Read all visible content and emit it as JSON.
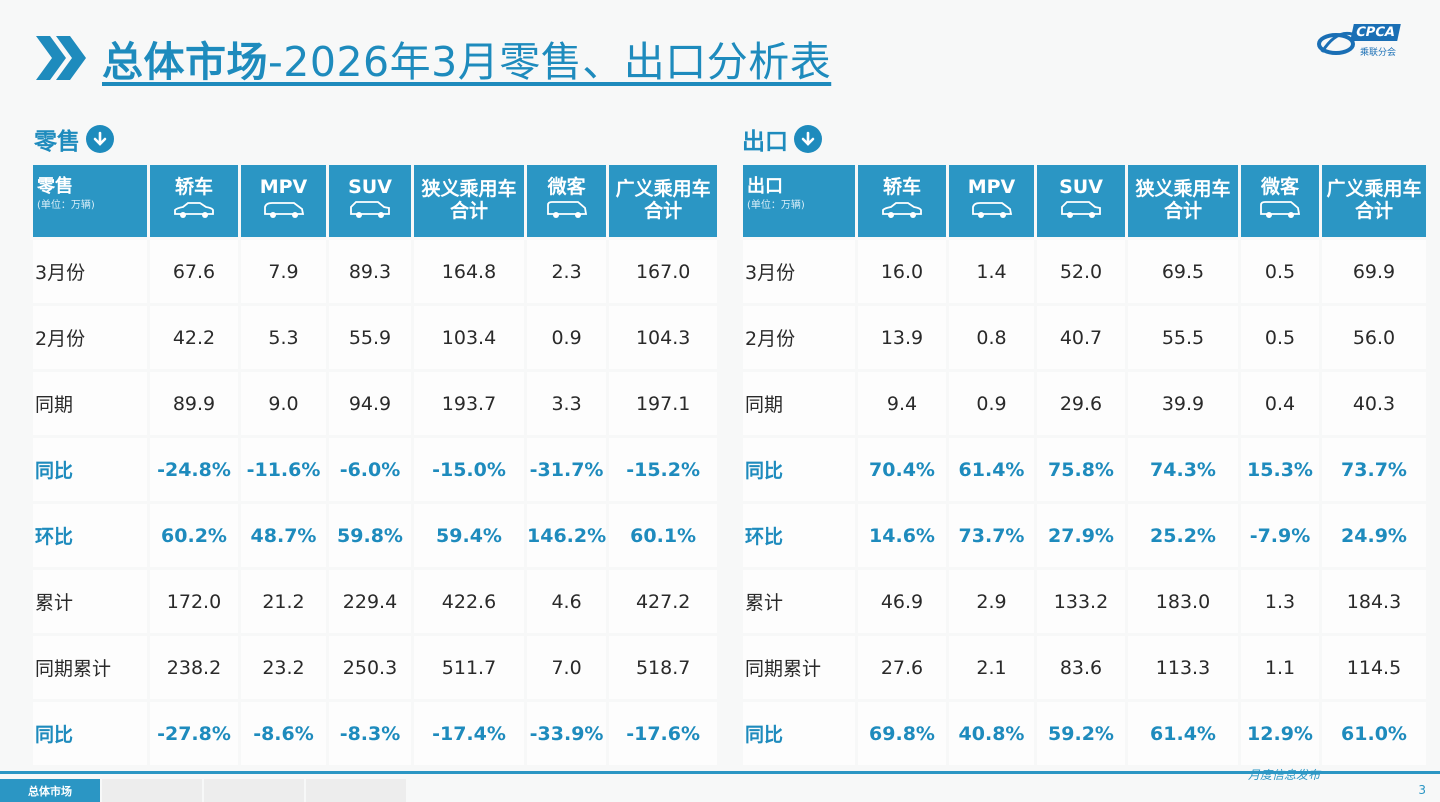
{
  "page": {
    "title_bold": "总体市场",
    "title_rest": "-2026年3月零售、出口分析表",
    "logo_text": "CPCA",
    "logo_sub": "乘联分会",
    "footer_note": "月度信息发布",
    "page_number": "3"
  },
  "colors": {
    "accent": "#2b96c4",
    "text": "#2a2a2a",
    "pct": "#1e8bbd"
  },
  "retail": {
    "label": "零售",
    "header_title": "零售",
    "header_unit": "(单位：万辆)",
    "columns": [
      {
        "l1": "轿车",
        "l2": "",
        "icon": "sedan-icon"
      },
      {
        "l1": "MPV",
        "l2": "",
        "icon": "mpv-icon"
      },
      {
        "l1": "SUV",
        "l2": "",
        "icon": "suv-icon"
      },
      {
        "l1": "狭义乘用车",
        "l2": "合计",
        "icon": ""
      },
      {
        "l1": "微客",
        "l2": "",
        "icon": "minivan-icon"
      },
      {
        "l1": "广义乘用车",
        "l2": "合计",
        "icon": ""
      }
    ],
    "rows": [
      {
        "label": "3月份",
        "pct": false,
        "values": [
          "67.6",
          "7.9",
          "89.3",
          "164.8",
          "2.3",
          "167.0"
        ]
      },
      {
        "label": "2月份",
        "pct": false,
        "values": [
          "42.2",
          "5.3",
          "55.9",
          "103.4",
          "0.9",
          "104.3"
        ]
      },
      {
        "label": "同期",
        "pct": false,
        "values": [
          "89.9",
          "9.0",
          "94.9",
          "193.7",
          "3.3",
          "197.1"
        ]
      },
      {
        "label": "同比",
        "pct": true,
        "values": [
          "-24.8%",
          "-11.6%",
          "-6.0%",
          "-15.0%",
          "-31.7%",
          "-15.2%"
        ]
      },
      {
        "label": "环比",
        "pct": true,
        "values": [
          "60.2%",
          "48.7%",
          "59.8%",
          "59.4%",
          "146.2%",
          "60.1%"
        ]
      },
      {
        "label": "累计",
        "pct": false,
        "values": [
          "172.0",
          "21.2",
          "229.4",
          "422.6",
          "4.6",
          "427.2"
        ]
      },
      {
        "label": "同期累计",
        "pct": false,
        "values": [
          "238.2",
          "23.2",
          "250.3",
          "511.7",
          "7.0",
          "518.7"
        ]
      },
      {
        "label": "同比",
        "pct": true,
        "values": [
          "-27.8%",
          "-8.6%",
          "-8.3%",
          "-17.4%",
          "-33.9%",
          "-17.6%"
        ]
      }
    ]
  },
  "export": {
    "label": "出口",
    "header_title": "出口",
    "header_unit": "(单位：万辆)",
    "columns": [
      {
        "l1": "轿车",
        "l2": "",
        "icon": "sedan-icon"
      },
      {
        "l1": "MPV",
        "l2": "",
        "icon": "mpv-icon"
      },
      {
        "l1": "SUV",
        "l2": "",
        "icon": "suv-icon"
      },
      {
        "l1": "狭义乘用车",
        "l2": "合计",
        "icon": ""
      },
      {
        "l1": "微客",
        "l2": "",
        "icon": "minivan-icon"
      },
      {
        "l1": "广义乘用车",
        "l2": "合计",
        "icon": ""
      }
    ],
    "rows": [
      {
        "label": "3月份",
        "pct": false,
        "values": [
          "16.0",
          "1.4",
          "52.0",
          "69.5",
          "0.5",
          "69.9"
        ]
      },
      {
        "label": "2月份",
        "pct": false,
        "values": [
          "13.9",
          "0.8",
          "40.7",
          "55.5",
          "0.5",
          "56.0"
        ]
      },
      {
        "label": "同期",
        "pct": false,
        "values": [
          "9.4",
          "0.9",
          "29.6",
          "39.9",
          "0.4",
          "40.3"
        ]
      },
      {
        "label": "同比",
        "pct": true,
        "values": [
          "70.4%",
          "61.4%",
          "75.8%",
          "74.3%",
          "15.3%",
          "73.7%"
        ]
      },
      {
        "label": "环比",
        "pct": true,
        "values": [
          "14.6%",
          "73.7%",
          "27.9%",
          "25.2%",
          "-7.9%",
          "24.9%"
        ]
      },
      {
        "label": "累计",
        "pct": false,
        "values": [
          "46.9",
          "2.9",
          "133.2",
          "183.0",
          "1.3",
          "184.3"
        ]
      },
      {
        "label": "同期累计",
        "pct": false,
        "values": [
          "27.6",
          "2.1",
          "83.6",
          "113.3",
          "1.1",
          "114.5"
        ]
      },
      {
        "label": "同比",
        "pct": true,
        "values": [
          "69.8%",
          "40.8%",
          "59.2%",
          "61.4%",
          "12.9%",
          "61.0%"
        ]
      }
    ]
  },
  "bottom_tabs": [
    {
      "label": "总体市场",
      "active": true
    }
  ]
}
